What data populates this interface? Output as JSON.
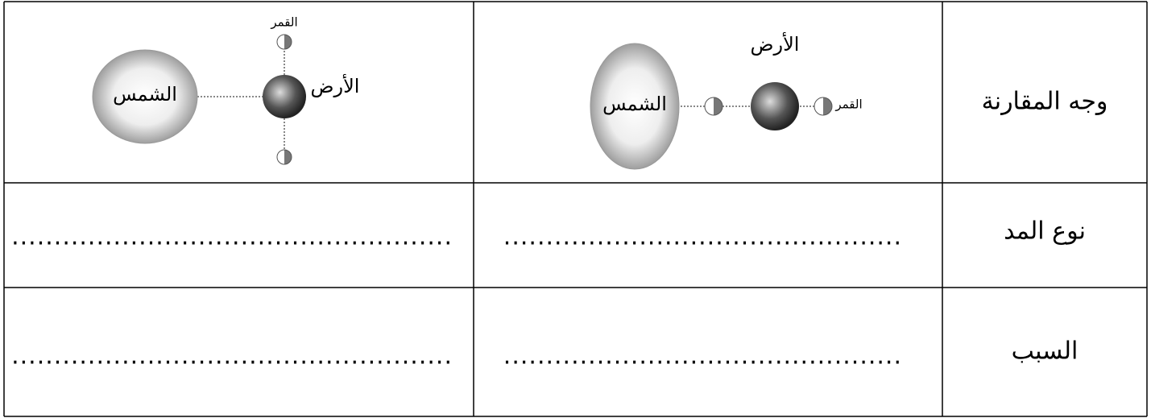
{
  "table": {
    "rows": [
      {
        "label": "وجه المقارنة",
        "cells": [
          {
            "sun": "الشمس",
            "earth": "الأرض",
            "moon": "القمر"
          },
          {
            "sun": "الشمس",
            "earth": "الأرض",
            "moon": "القمر"
          }
        ]
      },
      {
        "label": "نوع المد",
        "cells": [
          "...............................................",
          "...................................................."
        ]
      },
      {
        "label": "السبب",
        "cells": [
          "...............................................",
          "...................................................."
        ]
      }
    ]
  }
}
